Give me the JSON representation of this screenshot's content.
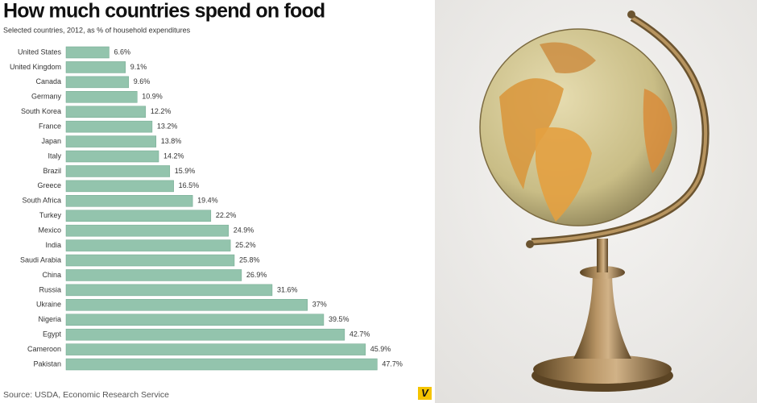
{
  "chart_data": {
    "type": "bar",
    "orientation": "horizontal",
    "title": "How much countries spend on food",
    "subtitle": "Selected countries, 2012, as % of household expenditures",
    "source": "Source: USDA, Economic Research Service",
    "logo": "V",
    "color": "#93c4ad",
    "categories": [
      "United States",
      "United Kingdom",
      "Canada",
      "Germany",
      "South Korea",
      "France",
      "Japan",
      "Italy",
      "Brazil",
      "Greece",
      "South Africa",
      "Turkey",
      "Mexico",
      "India",
      "Saudi Arabia",
      "China",
      "Russia",
      "Ukraine",
      "Nigeria",
      "Egypt",
      "Cameroon",
      "Pakistan"
    ],
    "values": [
      6.6,
      9.1,
      9.6,
      10.9,
      12.2,
      13.2,
      13.8,
      14.2,
      15.9,
      16.5,
      19.4,
      22.2,
      24.9,
      25.2,
      25.8,
      26.9,
      31.6,
      37,
      39.5,
      42.7,
      45.9,
      47.7
    ],
    "value_labels": [
      "6.6%",
      "9.1%",
      "9.6%",
      "10.9%",
      "12.2%",
      "13.2%",
      "13.8%",
      "14.2%",
      "15.9%",
      "16.5%",
      "19.4%",
      "22.2%",
      "24.9%",
      "25.2%",
      "25.8%",
      "26.9%",
      "31.6%",
      "37%",
      "39.5%",
      "42.7%",
      "45.9%",
      "47.7%"
    ]
  }
}
